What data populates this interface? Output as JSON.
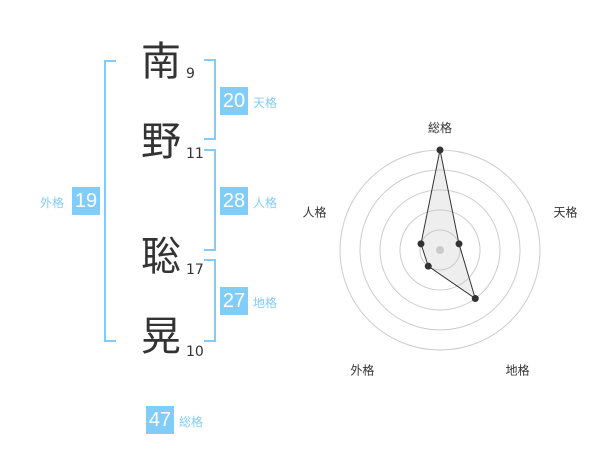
{
  "name": [
    {
      "char": "南",
      "strokes": "9"
    },
    {
      "char": "野",
      "strokes": "11"
    },
    {
      "char": "聡",
      "strokes": "17"
    },
    {
      "char": "晃",
      "strokes": "10"
    }
  ],
  "kaku": {
    "tenkaku": {
      "value": "20",
      "label": "天格"
    },
    "jinkaku": {
      "value": "28",
      "label": "人格"
    },
    "chikaku": {
      "value": "27",
      "label": "地格"
    },
    "gaikaku": {
      "value": "19",
      "label": "外格"
    },
    "soukaku": {
      "value": "47",
      "label": "総格"
    }
  },
  "accent_color": "#80cdf9",
  "chart_data": {
    "type": "radar",
    "axes": [
      "総格",
      "天格",
      "地格",
      "外格",
      "人格"
    ],
    "values": [
      5,
      1,
      3,
      1,
      1
    ],
    "range": [
      0,
      5
    ],
    "grid": "concentric circles"
  }
}
